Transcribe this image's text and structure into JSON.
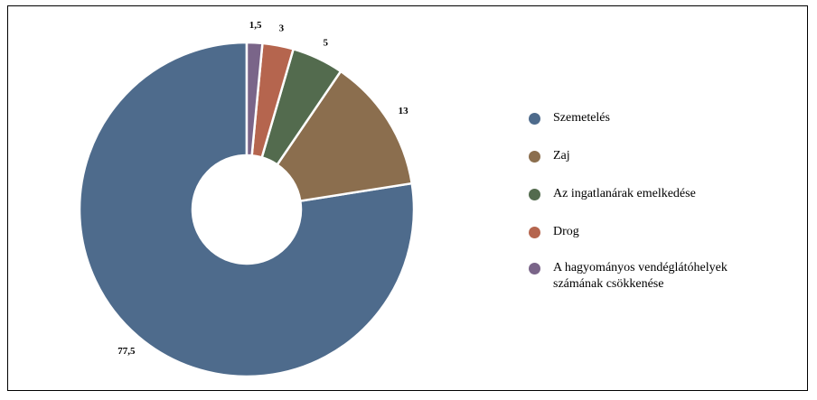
{
  "chart_data": {
    "type": "pie",
    "title": "",
    "donut": true,
    "categories": [
      "Szemetelés",
      "Zaj",
      "Az ingatlanárak emelkedése",
      "Drog",
      "A hagyományos vendéglátóhelyek számának csökkenése"
    ],
    "values": [
      77.5,
      13,
      5,
      3,
      1.5
    ],
    "value_labels": [
      "77,5",
      "13",
      "5",
      "3",
      "1,5"
    ],
    "colors": [
      "#4e6b8c",
      "#8b6e4e",
      "#536b4e",
      "#b5654e",
      "#7a6589"
    ],
    "legend_position": "right"
  },
  "legend": {
    "items": [
      {
        "text": "Szemetelés",
        "color": "#4e6b8c"
      },
      {
        "text": "Zaj",
        "color": "#8b6e4e"
      },
      {
        "text": "Az ingatlanárak emelkedése",
        "color": "#536b4e"
      },
      {
        "text": "Drog",
        "color": "#b5654e"
      },
      {
        "line1": "A hagyományos vendéglátóhelyek",
        "line2": "számának csökkenése",
        "color": "#7a6589"
      }
    ]
  }
}
